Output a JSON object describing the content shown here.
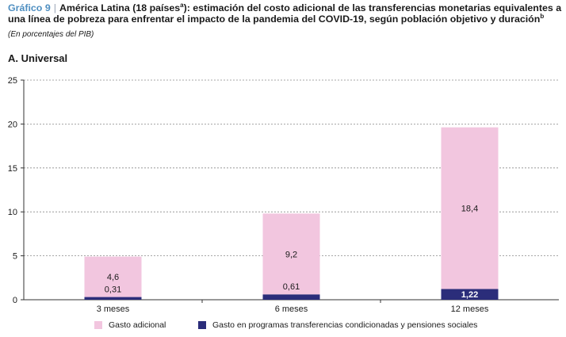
{
  "header": {
    "figure_label": "Gráfico 9",
    "separator": "|",
    "title_part1": "América Latina (18 países",
    "sup_a": "a",
    "title_part2": "): estimación del costo adicional de las transferencias monetarias equivalentes a una línea de pobreza para enfrentar el impacto de la pandemia del COVID-19, según población objetivo y duración",
    "sup_b": "b",
    "subtitle": "(En porcentajes del PIB)",
    "panel_title": "A. Universal"
  },
  "chart_data": {
    "type": "bar",
    "stacked": true,
    "categories": [
      "3 meses",
      "6 meses",
      "12 meses"
    ],
    "series": [
      {
        "name": "Gasto en programas transferencias condicionadas y pensiones sociales",
        "values": [
          0.31,
          0.61,
          1.22
        ],
        "labels": [
          "0,31",
          "0,61",
          "1,22"
        ],
        "color": "#2b2d7a",
        "label_color": "#1a1a1a",
        "label_color_big": "#ffffff"
      },
      {
        "name": "Gasto adicional",
        "values": [
          4.6,
          9.2,
          18.4
        ],
        "labels": [
          "4,6",
          "9,2",
          "18,4"
        ],
        "color": "#f2c6df"
      }
    ],
    "ylim": [
      0,
      25
    ],
    "yticks": [
      0,
      5,
      10,
      15,
      20,
      25
    ],
    "grid": "dashed-horizontal",
    "legend_position": "bottom"
  },
  "legend": {
    "items": [
      {
        "label": "Gasto adicional",
        "color": "#f2c6df"
      },
      {
        "label": "Gasto en programas transferencias condicionadas y pensiones sociales",
        "color": "#2b2d7a"
      }
    ]
  }
}
